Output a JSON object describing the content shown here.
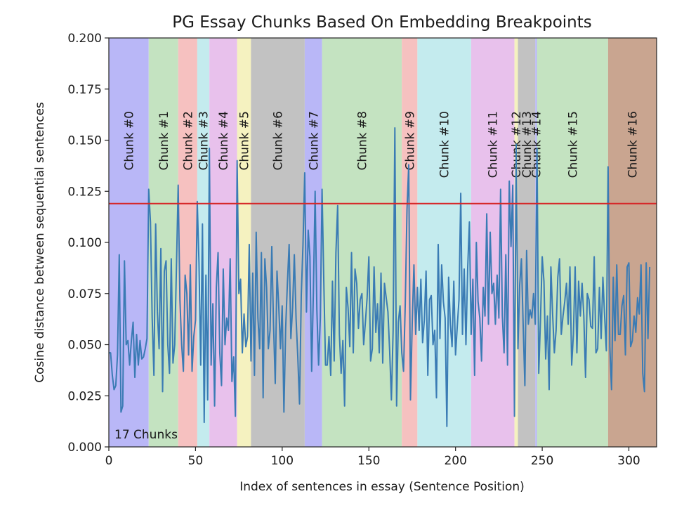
{
  "chart_data": {
    "type": "line",
    "title": "PG Essay Chunks Based On Embedding Breakpoints",
    "xlabel": "Index of sentences in essay (Sentence Position)",
    "ylabel": "Cosine distance between sequential sentences",
    "xlim": [
      0,
      316
    ],
    "ylim": [
      0,
      0.2
    ],
    "x_ticks": [
      0,
      50,
      100,
      150,
      200,
      250,
      300
    ],
    "y_ticks": [
      0.0,
      0.025,
      0.05,
      0.075,
      0.1,
      0.125,
      0.15,
      0.175,
      0.2
    ],
    "x_tick_labels": [
      "0",
      "50",
      "100",
      "150",
      "200",
      "250",
      "300"
    ],
    "y_tick_labels": [
      "0.000",
      "0.025",
      "0.050",
      "0.075",
      "0.100",
      "0.125",
      "0.150",
      "0.175",
      "0.200"
    ],
    "threshold": 0.119,
    "threshold_color": "#d62728",
    "line_color": "#3a7bb4",
    "annotation": "17 Chunks",
    "chunks": [
      {
        "label": "Chunk #0",
        "start": 0,
        "end": 23,
        "color": "#b9b7f7"
      },
      {
        "label": "Chunk #1",
        "start": 23,
        "end": 40,
        "color": "#c4e3c1"
      },
      {
        "label": "Chunk #2",
        "start": 40,
        "end": 51,
        "color": "#f6c1c0"
      },
      {
        "label": "Chunk #3",
        "start": 51,
        "end": 58,
        "color": "#c4ebee"
      },
      {
        "label": "Chunk #4",
        "start": 58,
        "end": 74,
        "color": "#e8c1ec"
      },
      {
        "label": "Chunk #5",
        "start": 74,
        "end": 82,
        "color": "#f5f2c0"
      },
      {
        "label": "Chunk #6",
        "start": 82,
        "end": 113,
        "color": "#c2c2c2"
      },
      {
        "label": "Chunk #7",
        "start": 113,
        "end": 123,
        "color": "#b9b7f7"
      },
      {
        "label": "Chunk #8",
        "start": 123,
        "end": 169,
        "color": "#c4e3c1"
      },
      {
        "label": "Chunk #9",
        "start": 169,
        "end": 178,
        "color": "#f6c1c0"
      },
      {
        "label": "Chunk #10",
        "start": 178,
        "end": 209,
        "color": "#c4ebee"
      },
      {
        "label": "Chunk #11",
        "start": 209,
        "end": 234,
        "color": "#e8c1ec"
      },
      {
        "label": "Chunk #12",
        "start": 234,
        "end": 236,
        "color": "#f5f2c0"
      },
      {
        "label": "Chunk #13",
        "start": 236,
        "end": 246,
        "color": "#c2c2c2"
      },
      {
        "label": "Chunk #14",
        "start": 246,
        "end": 247,
        "color": "#b9b7f7"
      },
      {
        "label": "Chunk #15",
        "start": 247,
        "end": 288,
        "color": "#c4e3c1"
      },
      {
        "label": "Chunk #16",
        "start": 288,
        "end": 316,
        "color": "#c9a590"
      }
    ],
    "series": [
      {
        "y": [
          0.046,
          0.046,
          0.035,
          0.028,
          0.03,
          0.045,
          0.094,
          0.017,
          0.02,
          0.091,
          0.05,
          0.052,
          0.04,
          0.052,
          0.061,
          0.034,
          0.055,
          0.04,
          0.052,
          0.043,
          0.044,
          0.048,
          0.053,
          0.126,
          0.11,
          0.063,
          0.035,
          0.109,
          0.066,
          0.048,
          0.097,
          0.027,
          0.086,
          0.091,
          0.05,
          0.036,
          0.092,
          0.041,
          0.05,
          0.088,
          0.128,
          0.072,
          0.05,
          0.037,
          0.084,
          0.075,
          0.045,
          0.089,
          0.037,
          0.054,
          0.062,
          0.12,
          0.09,
          0.04,
          0.109,
          0.012,
          0.084,
          0.023,
          0.146,
          0.04,
          0.07,
          0.02,
          0.078,
          0.095,
          0.046,
          0.03,
          0.087,
          0.05,
          0.063,
          0.057,
          0.092,
          0.032,
          0.044,
          0.015,
          0.14,
          0.075,
          0.082,
          0.046,
          0.065,
          0.049,
          0.054,
          0.099,
          0.042,
          0.085,
          0.035,
          0.105,
          0.063,
          0.048,
          0.095,
          0.024,
          0.092,
          0.078,
          0.048,
          0.057,
          0.098,
          0.06,
          0.031,
          0.086,
          0.069,
          0.048,
          0.069,
          0.017,
          0.058,
          0.08,
          0.099,
          0.053,
          0.068,
          0.094,
          0.063,
          0.044,
          0.021,
          0.074,
          0.099,
          0.134,
          0.066,
          0.106,
          0.093,
          0.037,
          0.076,
          0.125,
          0.067,
          0.04,
          0.063,
          0.126,
          0.081,
          0.04,
          0.04,
          0.054,
          0.035,
          0.081,
          0.042,
          0.095,
          0.118,
          0.055,
          0.036,
          0.052,
          0.02,
          0.078,
          0.068,
          0.049,
          0.095,
          0.046,
          0.087,
          0.08,
          0.058,
          0.072,
          0.075,
          0.05,
          0.061,
          0.073,
          0.093,
          0.042,
          0.048,
          0.088,
          0.056,
          0.07,
          0.046,
          0.085,
          0.041,
          0.08,
          0.073,
          0.066,
          0.047,
          0.023,
          0.057,
          0.156,
          0.02,
          0.061,
          0.069,
          0.046,
          0.037,
          0.07,
          0.116,
          0.138,
          0.023,
          0.06,
          0.089,
          0.055,
          0.078,
          0.057,
          0.082,
          0.051,
          0.062,
          0.086,
          0.035,
          0.072,
          0.074,
          0.05,
          0.057,
          0.024,
          0.099,
          0.053,
          0.089,
          0.071,
          0.063,
          0.01,
          0.083,
          0.06,
          0.049,
          0.081,
          0.045,
          0.059,
          0.072,
          0.124,
          0.055,
          0.087,
          0.05,
          0.087,
          0.11,
          0.055,
          0.082,
          0.035,
          0.1,
          0.071,
          0.063,
          0.042,
          0.078,
          0.064,
          0.114,
          0.06,
          0.105,
          0.075,
          0.08,
          0.06,
          0.084,
          0.063,
          0.126,
          0.064,
          0.046,
          0.094,
          0.04,
          0.13,
          0.098,
          0.128,
          0.015,
          0.148,
          0.048,
          0.079,
          0.092,
          0.06,
          0.03,
          0.096,
          0.06,
          0.067,
          0.063,
          0.075,
          0.06,
          0.146,
          0.036,
          0.062,
          0.093,
          0.081,
          0.043,
          0.064,
          0.028,
          0.088,
          0.065,
          0.046,
          0.057,
          0.083,
          0.092,
          0.055,
          0.064,
          0.071,
          0.08,
          0.06,
          0.088,
          0.04,
          0.055,
          0.088,
          0.046,
          0.081,
          0.064,
          0.08,
          0.064,
          0.034,
          0.075,
          0.072,
          0.059,
          0.058,
          0.093,
          0.046,
          0.048,
          0.078,
          0.053,
          0.083,
          0.064,
          0.047,
          0.137,
          0.049,
          0.028,
          0.083,
          0.052,
          0.089,
          0.055,
          0.055,
          0.069,
          0.074,
          0.045,
          0.088,
          0.09,
          0.049,
          0.052,
          0.064,
          0.056,
          0.073,
          0.065,
          0.089,
          0.036,
          0.027,
          0.09,
          0.053,
          0.088
        ]
      }
    ]
  }
}
